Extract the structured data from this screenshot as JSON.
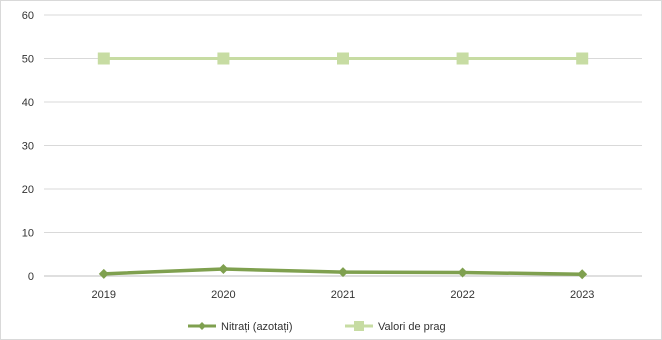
{
  "chart_data": {
    "type": "line",
    "title": "",
    "xlabel": "",
    "ylabel": "",
    "ylim": [
      0,
      60
    ],
    "yticks": [
      0,
      10,
      20,
      30,
      40,
      50,
      60
    ],
    "categories": [
      "2019",
      "2020",
      "2021",
      "2022",
      "2023"
    ],
    "grid": true,
    "legend_position": "bottom",
    "series": [
      {
        "name": "Nitrați (azotați)",
        "values": [
          0.5,
          1.6,
          0.9,
          0.8,
          0.4
        ],
        "color": "#7fa04f",
        "marker": "diamond"
      },
      {
        "name": "Valori de prag",
        "values": [
          50,
          50,
          50,
          50,
          50
        ],
        "color": "#c7dca3",
        "marker": "square"
      }
    ]
  }
}
